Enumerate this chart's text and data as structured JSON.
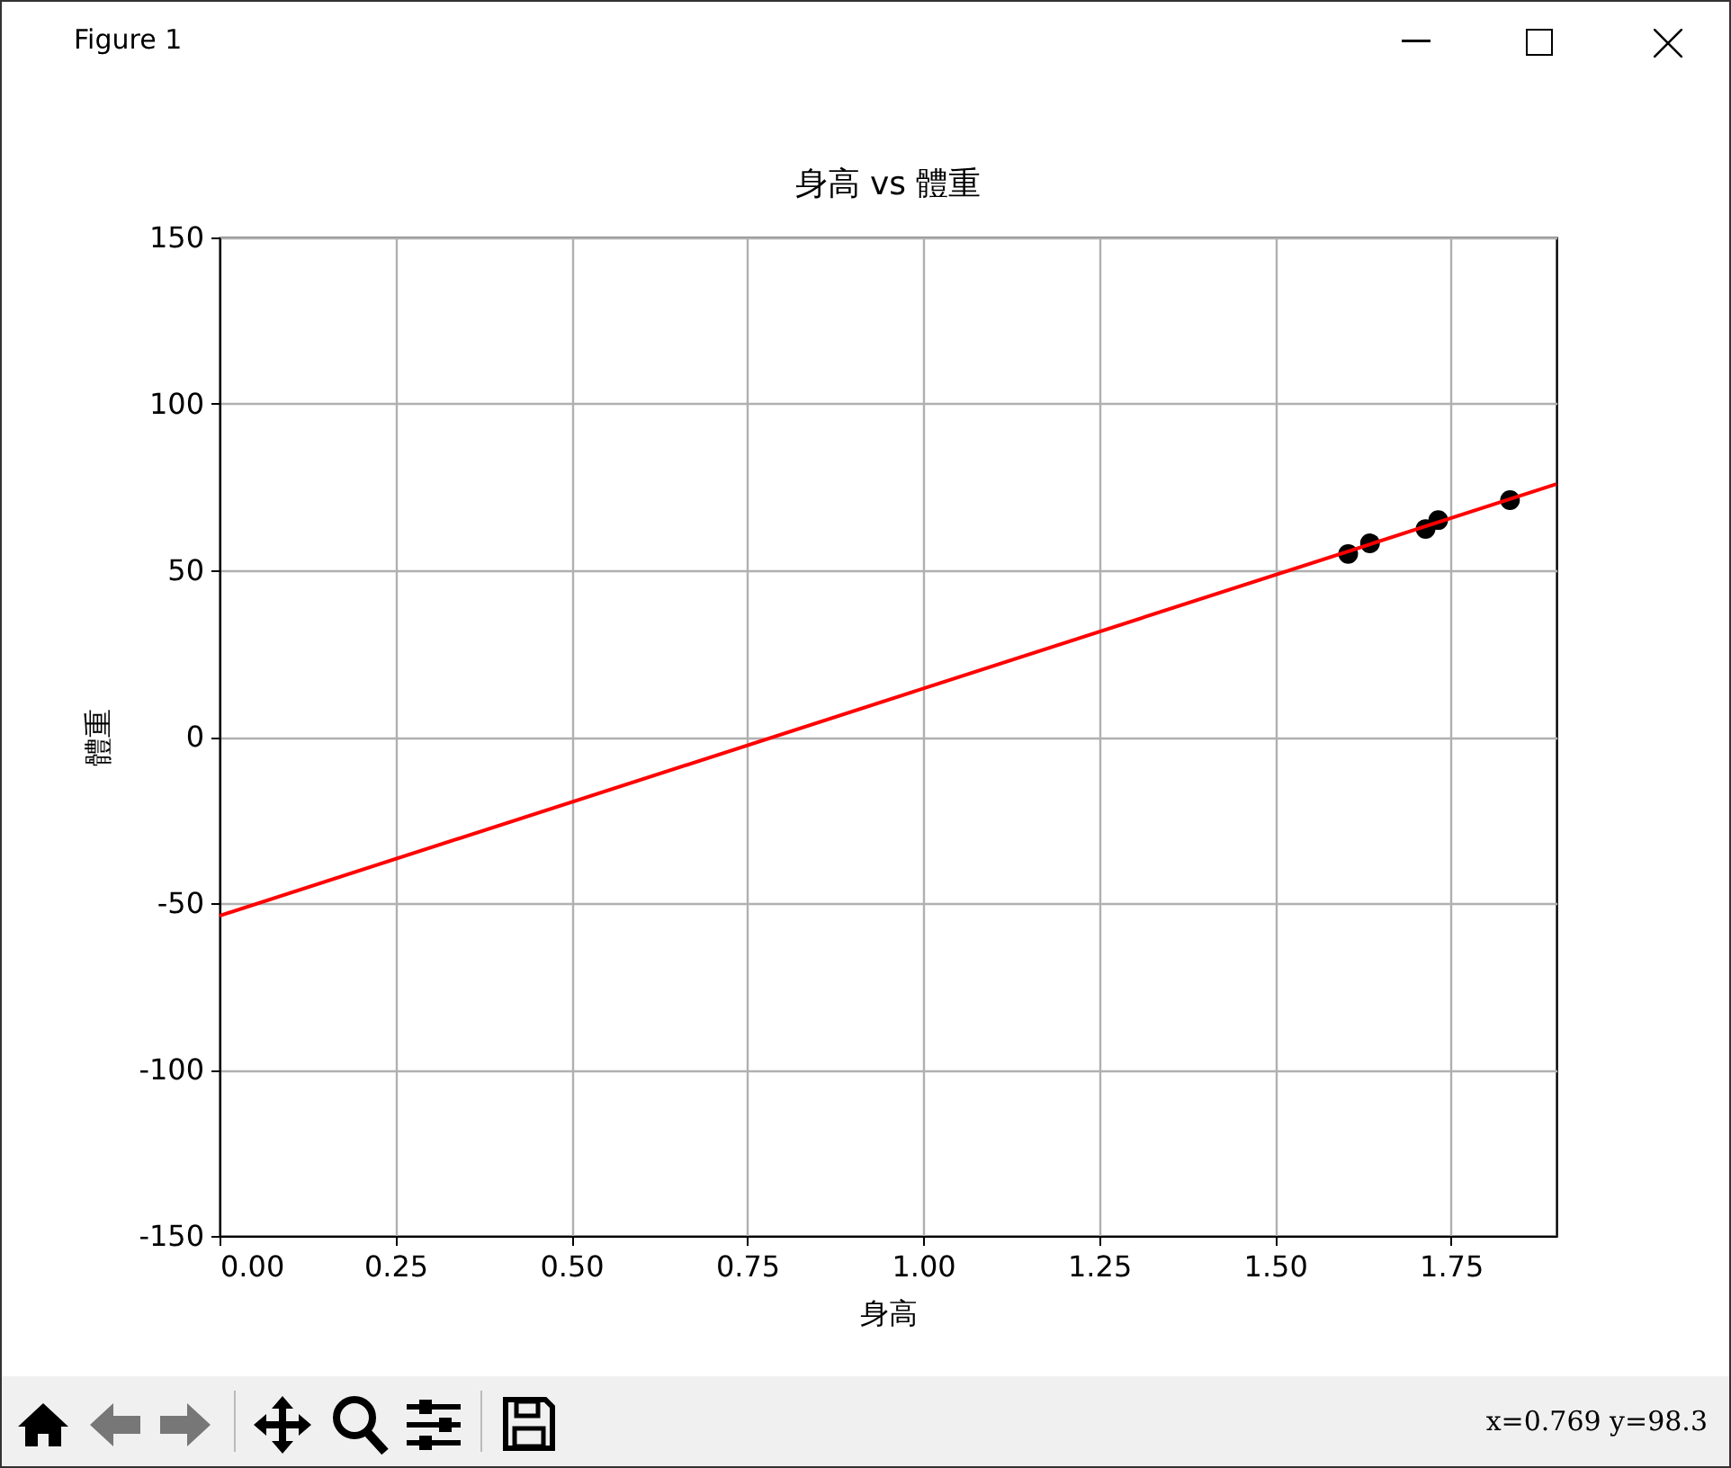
{
  "chart_data": {
    "type": "scatter",
    "title": "身高 vs 體重",
    "xlabel": "身高",
    "ylabel": "體重",
    "xlim": [
      0,
      1.9
    ],
    "ylim": [
      -150,
      150
    ],
    "xticks": [
      {
        "value": 0,
        "label": "0.00"
      },
      {
        "value": 0.25,
        "label": "0.25"
      },
      {
        "value": 0.5,
        "label": "0.50"
      },
      {
        "value": 0.75,
        "label": "0.75"
      },
      {
        "value": 1,
        "label": "1.00"
      },
      {
        "value": 1.25,
        "label": "1.25"
      },
      {
        "value": 1.5,
        "label": "1.50"
      },
      {
        "value": 1.75,
        "label": "1.75"
      }
    ],
    "yticks": [
      -150,
      -100,
      -50,
      0,
      50,
      100,
      150
    ],
    "grid": true,
    "annotations": [
      "Figure 1",
      "x=0.769 y=98.3"
    ],
    "series": [
      {
        "color": "#000000",
        "marker": "circle",
        "x": [
          1.604,
          1.635,
          1.714,
          1.732,
          1.834
        ],
        "values": [
          54.9,
          58.1,
          62.4,
          65.1,
          71.1
        ]
      },
      {
        "type": "line",
        "color": "#ff0000",
        "line_style": "solid",
        "x": [
          0,
          1.9
        ],
        "values": [
          -53.8,
          75.9
        ]
      }
    ]
  }
}
